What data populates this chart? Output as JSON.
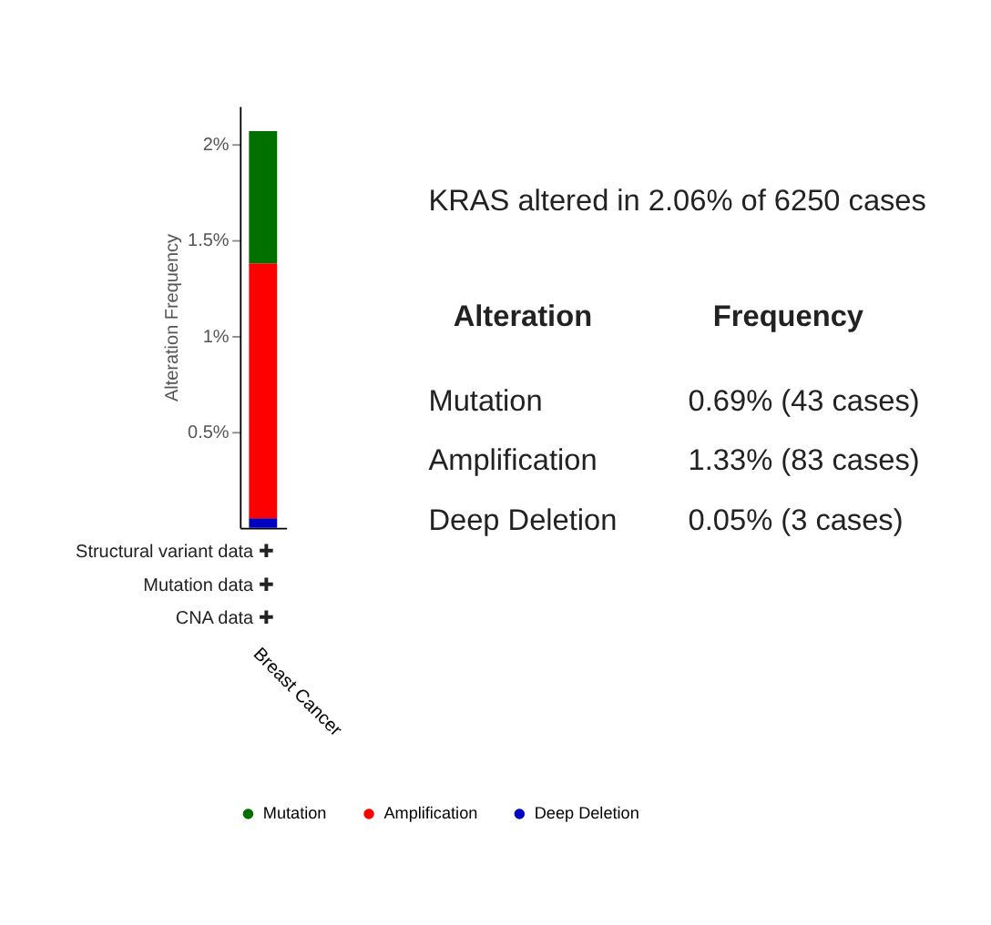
{
  "chart_data": {
    "type": "bar",
    "stacked": true,
    "categories": [
      "Breast Cancer"
    ],
    "ylabel": "Alteration Frequency",
    "ylim": [
      0,
      2.2
    ],
    "yticks": [
      {
        "value": 0.5,
        "label": "0.5%"
      },
      {
        "value": 1,
        "label": "1%"
      },
      {
        "value": 1.5,
        "label": "1.5%"
      },
      {
        "value": 2,
        "label": "2%"
      }
    ],
    "series": [
      {
        "name": "Deep Deletion",
        "color": "#0000c0",
        "values": [
          0.05
        ]
      },
      {
        "name": "Amplification",
        "color": "#ff0000",
        "values": [
          1.33
        ]
      },
      {
        "name": "Mutation",
        "color": "#007000",
        "values": [
          0.69
        ]
      }
    ],
    "legend": "bottom",
    "grid": false,
    "annotations": [
      "KRAS altered in 2.06% of 6250 cases",
      "Alteration",
      "Frequency",
      "Mutation",
      "0.69% (43 cases)",
      "Amplification",
      "1.33% (83 cases)",
      "Deep Deletion",
      "0.05% (3 cases)",
      "Structural variant data ✚",
      "Mutation data ✚",
      "CNA data ✚"
    ]
  }
}
